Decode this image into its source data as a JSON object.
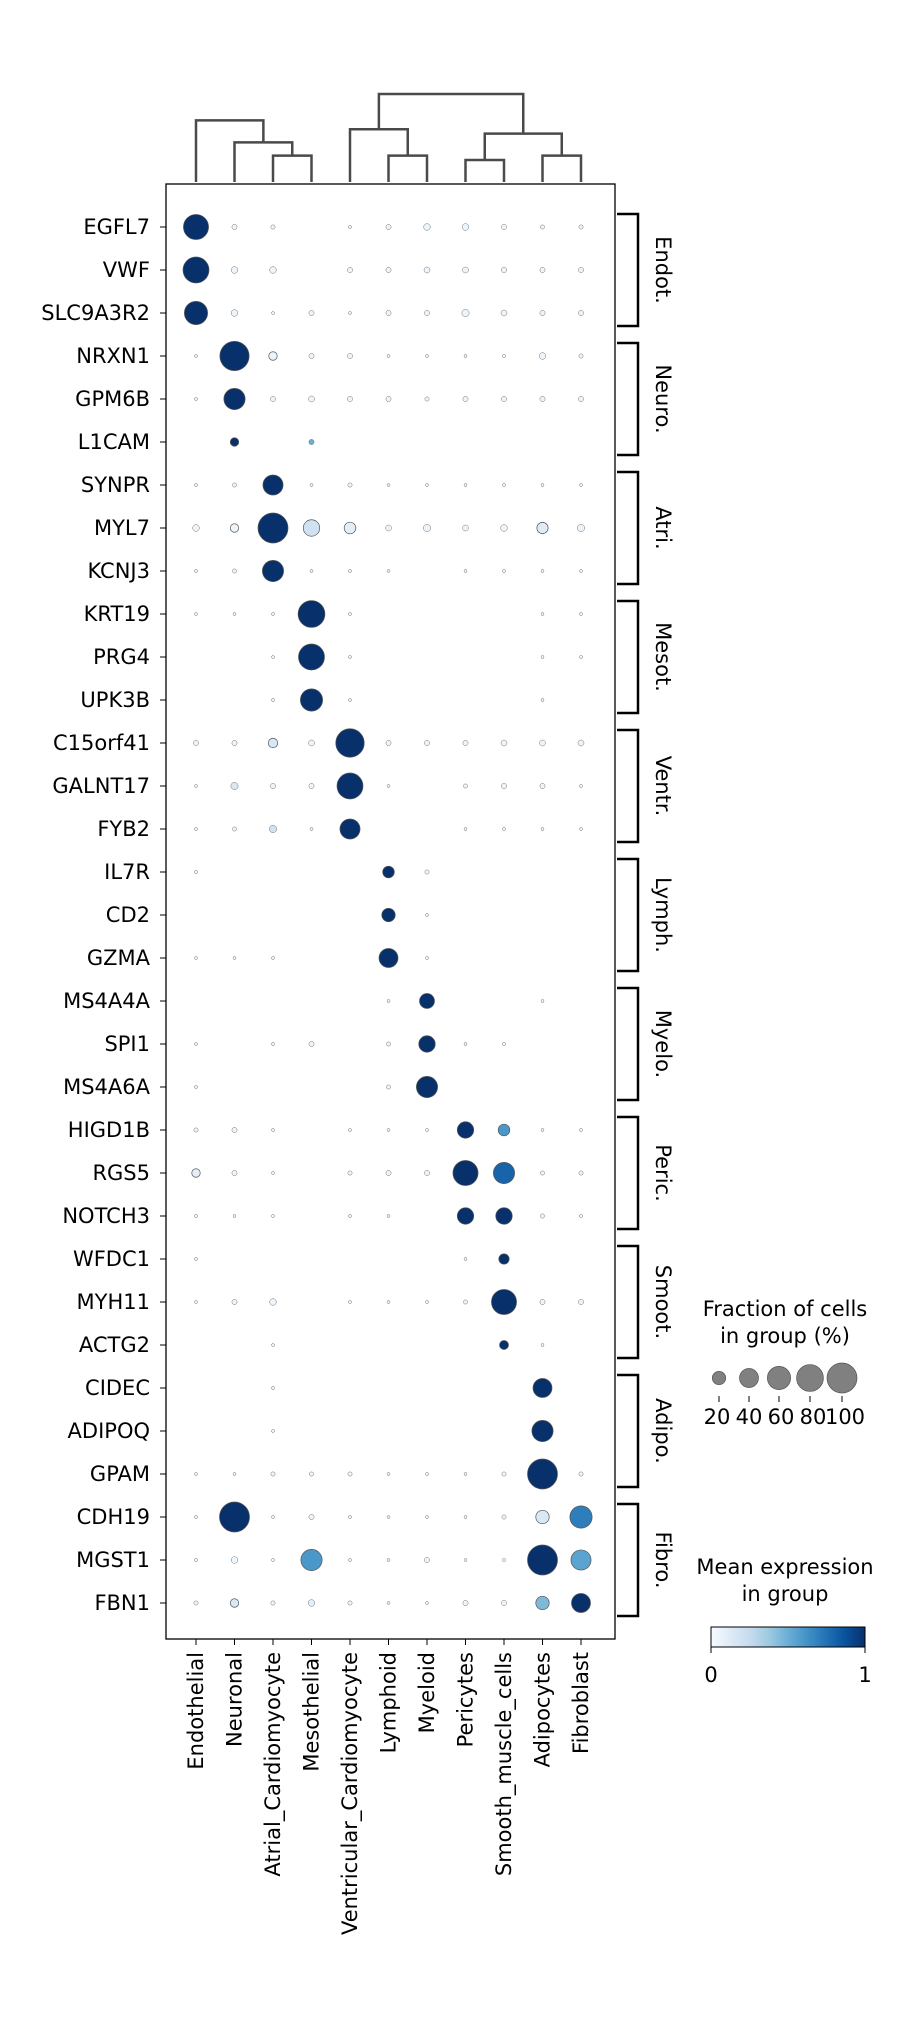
{
  "chart_data": {
    "type": "dotplot",
    "x_categories": [
      "Endothelial",
      "Neuronal",
      "Atrial_Cardiomyocyte",
      "Mesothelial",
      "Ventricular_Cardiomyocyte",
      "Lymphoid",
      "Myeloid",
      "Pericytes",
      "Smooth_muscle_cells",
      "Adipocytes",
      "Fibroblast"
    ],
    "genes": [
      "EGFL7",
      "VWF",
      "SLC9A3R2",
      "NRXN1",
      "GPM6B",
      "L1CAM",
      "SYNPR",
      "MYL7",
      "KCNJ3",
      "KRT19",
      "PRG4",
      "UPK3B",
      "C15orf41",
      "GALNT17",
      "FYB2",
      "IL7R",
      "CD2",
      "GZMA",
      "MS4A4A",
      "SPI1",
      "MS4A6A",
      "HIGD1B",
      "RGS5",
      "NOTCH3",
      "WFDC1",
      "MYH11",
      "ACTG2",
      "CIDEC",
      "ADIPOQ",
      "GPAM",
      "CDH19",
      "MGST1",
      "FBN1"
    ],
    "gene_groups": [
      {
        "label": "Endot.",
        "start": 0,
        "end": 2
      },
      {
        "label": "Neuro.",
        "start": 3,
        "end": 5
      },
      {
        "label": "Atri.",
        "start": 6,
        "end": 8
      },
      {
        "label": "Mesot.",
        "start": 9,
        "end": 11
      },
      {
        "label": "Ventr.",
        "start": 12,
        "end": 14
      },
      {
        "label": "Lymph.",
        "start": 15,
        "end": 17
      },
      {
        "label": "Myelo.",
        "start": 18,
        "end": 20
      },
      {
        "label": "Peric.",
        "start": 21,
        "end": 23
      },
      {
        "label": "Smoot.",
        "start": 24,
        "end": 26
      },
      {
        "label": "Adipo.",
        "start": 27,
        "end": 29
      },
      {
        "label": "Fibro.",
        "start": 30,
        "end": 32
      }
    ],
    "fraction": [
      [
        70,
        3,
        2,
        0,
        1,
        3,
        5,
        5,
        3,
        2,
        2
      ],
      [
        75,
        5,
        5,
        0,
        3,
        3,
        4,
        4,
        3,
        3,
        3
      ],
      [
        60,
        5,
        1,
        3,
        1,
        3,
        3,
        6,
        4,
        3,
        3
      ],
      [
        1,
        95,
        8,
        3,
        3,
        1,
        1,
        1,
        1,
        5,
        2
      ],
      [
        1,
        50,
        3,
        4,
        3,
        3,
        2,
        3,
        3,
        3,
        3
      ],
      [
        0,
        8,
        0,
        3,
        0,
        0,
        0,
        0,
        0,
        0,
        0
      ],
      [
        1,
        2,
        45,
        1,
        2,
        1,
        1,
        1,
        1,
        1,
        1
      ],
      [
        5,
        8,
        100,
        30,
        15,
        4,
        6,
        4,
        5,
        14,
        6
      ],
      [
        1,
        2,
        50,
        1,
        1,
        1,
        0,
        1,
        1,
        1,
        1
      ],
      [
        1,
        1,
        1,
        80,
        1,
        0,
        0,
        0,
        0,
        1,
        1
      ],
      [
        0,
        0,
        1,
        75,
        1,
        0,
        0,
        0,
        0,
        1,
        1
      ],
      [
        0,
        0,
        1,
        55,
        1,
        0,
        0,
        0,
        0,
        1,
        0
      ],
      [
        3,
        3,
        10,
        4,
        90,
        3,
        3,
        3,
        4,
        4,
        4
      ],
      [
        1,
        6,
        3,
        3,
        75,
        1,
        0,
        2,
        3,
        3,
        1
      ],
      [
        1,
        2,
        6,
        1,
        45,
        0,
        0,
        1,
        1,
        1,
        1
      ],
      [
        1,
        0,
        0,
        0,
        0,
        15,
        2,
        0,
        0,
        0,
        0
      ],
      [
        0,
        0,
        0,
        0,
        0,
        20,
        1,
        0,
        0,
        0,
        0
      ],
      [
        1,
        1,
        1,
        0,
        0,
        40,
        1,
        0,
        0,
        0,
        0
      ],
      [
        0,
        0,
        0,
        0,
        0,
        1,
        25,
        0,
        0,
        1,
        0
      ],
      [
        1,
        0,
        1,
        3,
        0,
        2,
        30,
        1,
        1,
        0,
        0
      ],
      [
        1,
        0,
        0,
        0,
        0,
        2,
        50,
        0,
        0,
        0,
        0
      ],
      [
        2,
        3,
        1,
        0,
        1,
        1,
        1,
        30,
        15,
        1,
        1
      ],
      [
        8,
        3,
        1,
        0,
        2,
        3,
        3,
        70,
        50,
        2,
        2
      ],
      [
        1,
        1,
        1,
        0,
        1,
        1,
        0,
        30,
        30,
        2,
        1
      ],
      [
        1,
        0,
        0,
        0,
        0,
        0,
        0,
        1,
        12,
        0,
        0
      ],
      [
        1,
        3,
        5,
        0,
        1,
        1,
        1,
        2,
        70,
        3,
        3
      ],
      [
        0,
        0,
        1,
        0,
        0,
        0,
        0,
        0,
        9,
        1,
        0
      ],
      [
        0,
        0,
        1,
        0,
        0,
        0,
        0,
        0,
        0,
        40,
        0
      ],
      [
        0,
        0,
        1,
        0,
        0,
        0,
        0,
        0,
        0,
        50,
        0
      ],
      [
        1,
        1,
        2,
        2,
        2,
        1,
        1,
        1,
        2,
        100,
        2
      ],
      [
        1,
        100,
        1,
        3,
        1,
        1,
        1,
        1,
        2,
        20,
        55
      ],
      [
        1,
        5,
        1,
        50,
        1,
        1,
        3,
        1,
        1,
        100,
        45
      ],
      [
        2,
        8,
        2,
        5,
        2,
        1,
        1,
        3,
        3,
        20,
        40
      ]
    ],
    "mean_expression": [
      [
        1.0,
        0.05,
        0.05,
        0,
        0.05,
        0.05,
        0.05,
        0.05,
        0.05,
        0.05,
        0.05
      ],
      [
        1.0,
        0.05,
        0.05,
        0,
        0.05,
        0.05,
        0.05,
        0.05,
        0.05,
        0.05,
        0.05
      ],
      [
        1.0,
        0.05,
        0.05,
        0.05,
        0.05,
        0.05,
        0.05,
        0.05,
        0.05,
        0.05,
        0.05
      ],
      [
        0.05,
        1.0,
        0.05,
        0.05,
        0.05,
        0.05,
        0.05,
        0.05,
        0.05,
        0.05,
        0.05
      ],
      [
        0.05,
        1.0,
        0.05,
        0.05,
        0.05,
        0.05,
        0.05,
        0.05,
        0.05,
        0.05,
        0.05
      ],
      [
        0,
        1.0,
        0,
        0.5,
        0,
        0,
        0,
        0,
        0,
        0,
        0
      ],
      [
        0.05,
        0.05,
        1.0,
        0.05,
        0.05,
        0.05,
        0.05,
        0.05,
        0.05,
        0.05,
        0.05
      ],
      [
        0.05,
        0.05,
        1.0,
        0.2,
        0.1,
        0.05,
        0.05,
        0.05,
        0.05,
        0.12,
        0.05
      ],
      [
        0.05,
        0.05,
        1.0,
        0.05,
        0.05,
        0.05,
        0,
        0.05,
        0.05,
        0.05,
        0.05
      ],
      [
        0.05,
        0.05,
        0.05,
        1.0,
        0.05,
        0,
        0,
        0,
        0,
        0.05,
        0.05
      ],
      [
        0,
        0,
        0.05,
        1.0,
        0.05,
        0,
        0,
        0,
        0,
        0.05,
        0.05
      ],
      [
        0,
        0,
        0.05,
        1.0,
        0.05,
        0,
        0,
        0,
        0,
        0.05,
        0
      ],
      [
        0.05,
        0.05,
        0.15,
        0.05,
        1.0,
        0.05,
        0.05,
        0.05,
        0.05,
        0.05,
        0.05
      ],
      [
        0.05,
        0.15,
        0.05,
        0.05,
        1.0,
        0.05,
        0,
        0.05,
        0.05,
        0.05,
        0.05
      ],
      [
        0.05,
        0.05,
        0.2,
        0.05,
        1.0,
        0,
        0,
        0.05,
        0.05,
        0.05,
        0.05
      ],
      [
        0.05,
        0,
        0,
        0,
        0,
        1.0,
        0.05,
        0,
        0,
        0,
        0
      ],
      [
        0,
        0,
        0,
        0,
        0,
        1.0,
        0.05,
        0,
        0,
        0,
        0
      ],
      [
        0.05,
        0.05,
        0.05,
        0,
        0,
        1.0,
        0.05,
        0,
        0,
        0,
        0
      ],
      [
        0,
        0,
        0,
        0,
        0,
        0.05,
        1.0,
        0,
        0,
        0.05,
        0
      ],
      [
        0.05,
        0,
        0.05,
        0.05,
        0,
        0.05,
        1.0,
        0.05,
        0.05,
        0,
        0
      ],
      [
        0.05,
        0,
        0,
        0,
        0,
        0.05,
        1.0,
        0,
        0,
        0,
        0
      ],
      [
        0.05,
        0.05,
        0.05,
        0,
        0.05,
        0.05,
        0.05,
        1.0,
        0.6,
        0.05,
        0.05
      ],
      [
        0.1,
        0.05,
        0.05,
        0,
        0.05,
        0.05,
        0.05,
        1.0,
        0.8,
        0.05,
        0.05
      ],
      [
        0.05,
        0.05,
        0.05,
        0,
        0.05,
        0.05,
        0,
        1.0,
        1.0,
        0.05,
        0.05
      ],
      [
        0.05,
        0,
        0,
        0,
        0,
        0,
        0,
        0.05,
        1.0,
        0,
        0
      ],
      [
        0.05,
        0.05,
        0.05,
        0,
        0.05,
        0.05,
        0.05,
        0.05,
        1.0,
        0.05,
        0.05
      ],
      [
        0,
        0,
        0.05,
        0,
        0,
        0,
        0,
        0,
        1.0,
        0.05,
        0
      ],
      [
        0,
        0,
        0.05,
        0,
        0,
        0,
        0,
        0,
        0,
        1.0,
        0
      ],
      [
        0,
        0,
        0.05,
        0,
        0,
        0,
        0,
        0,
        0,
        1.0,
        0
      ],
      [
        0.05,
        0.05,
        0.05,
        0.05,
        0.05,
        0.05,
        0.05,
        0.05,
        0.05,
        1.0,
        0.05
      ],
      [
        0.05,
        1.0,
        0.05,
        0.05,
        0.05,
        0.05,
        0.05,
        0.05,
        0.05,
        0.15,
        0.7
      ],
      [
        0.05,
        0.05,
        0.05,
        0.6,
        0.05,
        0.05,
        0.05,
        0.05,
        0.05,
        1.0,
        0.55
      ],
      [
        0.05,
        0.15,
        0.05,
        0.1,
        0.05,
        0.05,
        0.05,
        0.05,
        0.05,
        0.45,
        1.0
      ]
    ],
    "dendrogram": {
      "merges": [
        [
          2,
          3
        ],
        [
          9,
          10
        ],
        [
          7,
          8
        ],
        [
          5,
          6
        ],
        [
          1,
          11
        ],
        [
          13,
          12
        ],
        [
          4,
          14
        ],
        [
          0,
          15
        ],
        [
          16,
          17
        ]
      ],
      "heights": [
        0.3,
        0.3,
        0.25,
        0.3,
        0.45,
        0.55,
        0.6,
        0.7,
        1.0
      ]
    },
    "size_legend": {
      "title": "Fraction of cells\nin group (%)",
      "values": [
        20,
        40,
        60,
        80,
        100
      ],
      "labels": [
        "20",
        "40",
        "60",
        "80",
        "100"
      ]
    },
    "color_legend": {
      "title": "Mean expression\nin group",
      "min": 0,
      "max": 1,
      "min_label": "0",
      "max_label": "1",
      "colormap": "Blues"
    }
  }
}
